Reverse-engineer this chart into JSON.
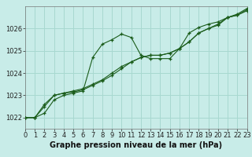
{
  "xlabel": "Graphe pression niveau de la mer (hPa)",
  "background_color": "#c8ece8",
  "grid_color": "#a8d8d0",
  "line_color": "#1a5c1a",
  "x_values": [
    0,
    1,
    2,
    3,
    4,
    5,
    6,
    7,
    8,
    9,
    10,
    11,
    12,
    13,
    14,
    15,
    16,
    17,
    18,
    19,
    20,
    21,
    22,
    23
  ],
  "series1": [
    1022.0,
    1022.0,
    1022.2,
    1022.8,
    1023.0,
    1023.1,
    1023.2,
    1024.7,
    1025.3,
    1025.5,
    1025.75,
    1025.6,
    1024.8,
    1024.65,
    1024.65,
    1024.65,
    1025.1,
    1025.8,
    1026.05,
    1026.2,
    1026.3,
    1026.5,
    1026.6,
    1026.8
  ],
  "series2": [
    1022.0,
    1022.0,
    1022.5,
    1023.0,
    1023.1,
    1023.15,
    1023.25,
    1023.45,
    1023.65,
    1023.9,
    1024.2,
    1024.5,
    1024.7,
    1024.8,
    1024.8,
    1024.9,
    1025.1,
    1025.4,
    1025.8,
    1026.0,
    1026.15,
    1026.5,
    1026.6,
    1026.85
  ],
  "series3": [
    1022.0,
    1022.0,
    1022.6,
    1023.0,
    1023.1,
    1023.2,
    1023.3,
    1023.5,
    1023.7,
    1024.0,
    1024.3,
    1024.5,
    1024.7,
    1024.8,
    1024.8,
    1024.9,
    1025.1,
    1025.4,
    1025.8,
    1026.0,
    1026.2,
    1026.5,
    1026.65,
    1026.9
  ],
  "ylim_min": 1021.5,
  "ylim_max": 1027.0,
  "xlim_min": 0,
  "xlim_max": 23,
  "yticks": [
    1022,
    1023,
    1024,
    1025,
    1026
  ],
  "xticks": [
    0,
    1,
    2,
    3,
    4,
    5,
    6,
    7,
    8,
    9,
    10,
    11,
    12,
    13,
    14,
    15,
    16,
    17,
    18,
    19,
    20,
    21,
    22,
    23
  ],
  "xlabel_fontsize": 7.0,
  "tick_fontsize": 6.0,
  "xlabel_fontweight": "bold",
  "linewidth": 0.8,
  "markersize": 3.0
}
